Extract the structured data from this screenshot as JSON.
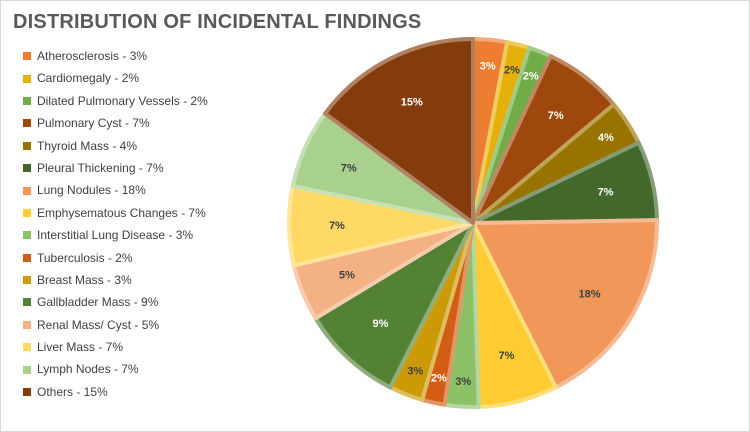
{
  "chart_data": {
    "type": "pie",
    "title": "DISTRIBUTION OF INCIDENTAL FINDINGS",
    "legend_position": "left",
    "slices": [
      {
        "legend": "Atherosclerosis - 3%",
        "label": "3%",
        "value": 3,
        "color": "#ED7D31"
      },
      {
        "legend": "Cardiomegaly - 2%",
        "label": "2%",
        "value": 2,
        "color": "#E6B00A"
      },
      {
        "legend": "Dilated Pulmonary Vessels - 2%",
        "label": "2%",
        "value": 2,
        "color": "#70AD47"
      },
      {
        "legend": "Pulmonary Cyst - 7%",
        "label": "7%",
        "value": 7,
        "color": "#9E480E"
      },
      {
        "legend": "Thyroid Mass - 4%",
        "label": "4%",
        "value": 4,
        "color": "#997300"
      },
      {
        "legend": "Pleural Thickening - 7%",
        "label": "7%",
        "value": 7,
        "color": "#43682B"
      },
      {
        "legend": "Lung Nodules - 18%",
        "label": "18%",
        "value": 18,
        "color": "#F1975A"
      },
      {
        "legend": "Emphysematous Changes - 7%",
        "label": "7%",
        "value": 7,
        "color": "#FFCD33"
      },
      {
        "legend": "Interstitial Lung Disease - 3%",
        "label": "3%",
        "value": 3,
        "color": "#8CC168"
      },
      {
        "legend": "Tuberculosis - 2%",
        "label": "2%",
        "value": 2,
        "color": "#D25D14"
      },
      {
        "legend": "Breast Mass - 3%",
        "label": "3%",
        "value": 3,
        "color": "#CC9A06"
      },
      {
        "legend": "Gallbladder Mass - 9%",
        "label": "9%",
        "value": 9,
        "color": "#548235"
      },
      {
        "legend": "Renal Mass/ Cyst - 5%",
        "label": "5%",
        "value": 5,
        "color": "#F4B183"
      },
      {
        "legend": "Liver Mass - 7%",
        "label": "7%",
        "value": 7,
        "color": "#FFD966"
      },
      {
        "legend": "Lymph Nodes - 7%",
        "label": "7%",
        "value": 7,
        "color": "#A9D18E"
      },
      {
        "legend": "Others - 15%",
        "label": "15%",
        "value": 15,
        "color": "#843C0C"
      }
    ]
  }
}
